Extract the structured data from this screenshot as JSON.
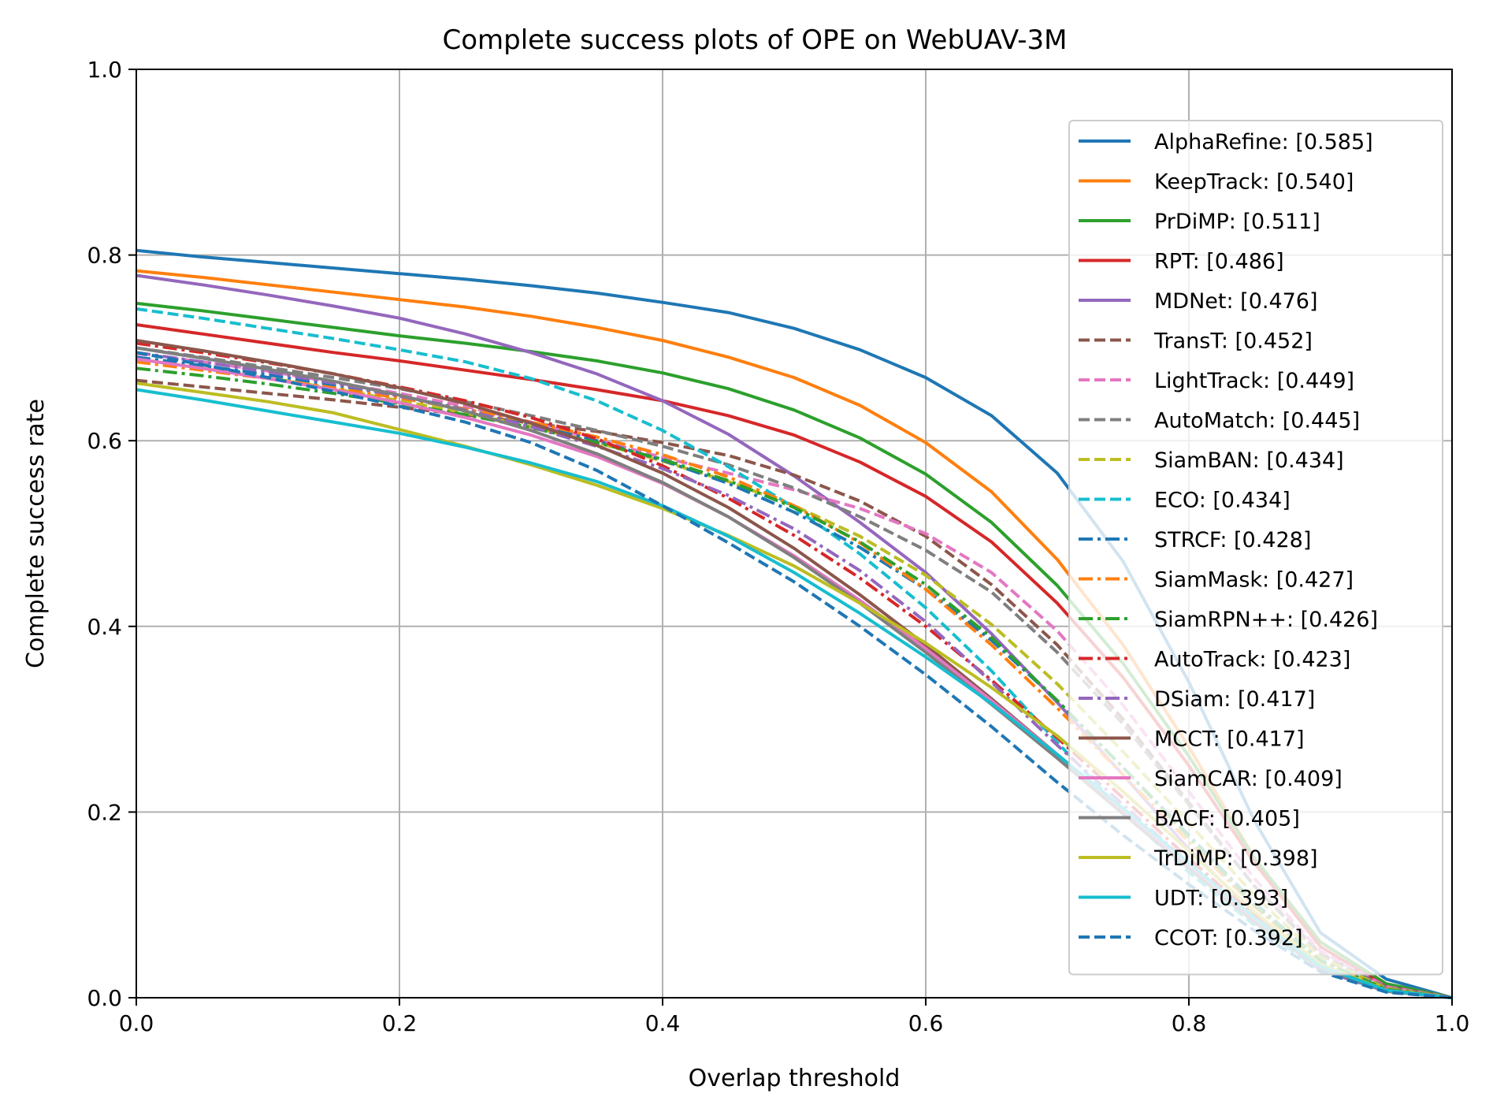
{
  "chart_data": {
    "type": "line",
    "title": "Complete success plots of OPE on WebUAV-3M",
    "xlabel": "Overlap threshold",
    "ylabel": "Complete success rate",
    "xlim": [
      0,
      1
    ],
    "ylim": [
      0,
      1
    ],
    "xticks": [
      "0.0",
      "0.2",
      "0.4",
      "0.6",
      "0.8",
      "1.0"
    ],
    "yticks": [
      "0.0",
      "0.2",
      "0.4",
      "0.6",
      "0.8",
      "1.0"
    ],
    "grid": true,
    "legend_position": "upper-right",
    "x": [
      0.0,
      0.05,
      0.1,
      0.15,
      0.2,
      0.25,
      0.3,
      0.35,
      0.4,
      0.45,
      0.5,
      0.55,
      0.6,
      0.65,
      0.7,
      0.75,
      0.8,
      0.85,
      0.9,
      0.95,
      1.0
    ],
    "series": [
      {
        "name": "AlphaRefine",
        "label": "AlphaRefine: [0.585]",
        "color": "#1f77b4",
        "style": "solid",
        "values": [
          0.805,
          0.798,
          0.792,
          0.786,
          0.78,
          0.774,
          0.767,
          0.759,
          0.749,
          0.738,
          0.721,
          0.698,
          0.668,
          0.627,
          0.565,
          0.47,
          0.34,
          0.19,
          0.07,
          0.02,
          0.0
        ]
      },
      {
        "name": "KeepTrack",
        "label": "KeepTrack: [0.540]",
        "color": "#ff7f0e",
        "style": "solid",
        "values": [
          0.783,
          0.776,
          0.768,
          0.76,
          0.752,
          0.744,
          0.734,
          0.722,
          0.708,
          0.69,
          0.668,
          0.638,
          0.598,
          0.545,
          0.472,
          0.38,
          0.27,
          0.15,
          0.06,
          0.015,
          0.0
        ]
      },
      {
        "name": "PrDiMP",
        "label": "PrDiMP: [0.511]",
        "color": "#2ca02c",
        "style": "solid",
        "values": [
          0.748,
          0.74,
          0.731,
          0.722,
          0.713,
          0.705,
          0.696,
          0.686,
          0.673,
          0.656,
          0.633,
          0.603,
          0.564,
          0.512,
          0.444,
          0.36,
          0.26,
          0.15,
          0.06,
          0.015,
          0.0
        ]
      },
      {
        "name": "RPT",
        "label": "RPT: [0.486]",
        "color": "#d62728",
        "style": "solid",
        "values": [
          0.725,
          0.715,
          0.705,
          0.695,
          0.686,
          0.676,
          0.666,
          0.655,
          0.643,
          0.627,
          0.606,
          0.577,
          0.54,
          0.491,
          0.425,
          0.345,
          0.25,
          0.145,
          0.055,
          0.012,
          0.0
        ]
      },
      {
        "name": "MDNet",
        "label": "MDNet: [0.476]",
        "color": "#9467bd",
        "style": "solid",
        "values": [
          0.778,
          0.768,
          0.757,
          0.745,
          0.732,
          0.715,
          0.695,
          0.672,
          0.643,
          0.607,
          0.562,
          0.512,
          0.458,
          0.392,
          0.318,
          0.24,
          0.16,
          0.09,
          0.035,
          0.008,
          0.0
        ]
      },
      {
        "name": "TransT",
        "label": "TransT: [0.452]",
        "color": "#8c564b",
        "style": "dashed",
        "values": [
          0.665,
          0.658,
          0.651,
          0.644,
          0.636,
          0.628,
          0.619,
          0.61,
          0.598,
          0.584,
          0.563,
          0.535,
          0.497,
          0.445,
          0.38,
          0.3,
          0.21,
          0.12,
          0.048,
          0.012,
          0.0
        ]
      },
      {
        "name": "LightTrack",
        "label": "LightTrack: [0.449]",
        "color": "#e377c2",
        "style": "dashed",
        "values": [
          0.694,
          0.685,
          0.675,
          0.663,
          0.651,
          0.637,
          0.62,
          0.601,
          0.582,
          0.565,
          0.547,
          0.527,
          0.5,
          0.458,
          0.395,
          0.315,
          0.222,
          0.128,
          0.05,
          0.012,
          0.0
        ]
      },
      {
        "name": "AutoMatch",
        "label": "AutoMatch: [0.445]",
        "color": "#7f7f7f",
        "style": "dashed",
        "values": [
          0.7,
          0.69,
          0.679,
          0.668,
          0.656,
          0.642,
          0.627,
          0.611,
          0.594,
          0.574,
          0.549,
          0.518,
          0.482,
          0.437,
          0.372,
          0.295,
          0.208,
          0.12,
          0.046,
          0.011,
          0.0
        ]
      },
      {
        "name": "SiamBAN",
        "label": "SiamBAN: [0.434]",
        "color": "#bcbd22",
        "style": "dashed",
        "values": [
          0.688,
          0.678,
          0.668,
          0.656,
          0.643,
          0.63,
          0.615,
          0.598,
          0.578,
          0.556,
          0.53,
          0.497,
          0.455,
          0.402,
          0.338,
          0.265,
          0.188,
          0.11,
          0.043,
          0.01,
          0.0
        ]
      },
      {
        "name": "ECO",
        "label": "ECO: [0.434]",
        "color": "#17becf",
        "style": "dashed",
        "values": [
          0.742,
          0.732,
          0.721,
          0.71,
          0.698,
          0.685,
          0.667,
          0.643,
          0.611,
          0.572,
          0.528,
          0.478,
          0.42,
          0.352,
          0.275,
          0.2,
          0.135,
          0.078,
          0.03,
          0.007,
          0.0
        ]
      },
      {
        "name": "STRCF",
        "label": "STRCF: [0.428]",
        "color": "#1f77b4",
        "style": "dashdot",
        "values": [
          0.69,
          0.681,
          0.671,
          0.66,
          0.648,
          0.634,
          0.618,
          0.6,
          0.579,
          0.554,
          0.523,
          0.485,
          0.44,
          0.385,
          0.32,
          0.248,
          0.175,
          0.102,
          0.04,
          0.009,
          0.0
        ]
      },
      {
        "name": "SiamMask",
        "label": "SiamMask: [0.427]",
        "color": "#ff7f0e",
        "style": "dashdot",
        "values": [
          0.685,
          0.676,
          0.667,
          0.657,
          0.646,
          0.634,
          0.62,
          0.604,
          0.585,
          0.561,
          0.53,
          0.49,
          0.44,
          0.38,
          0.312,
          0.24,
          0.168,
          0.098,
          0.038,
          0.009,
          0.0
        ]
      },
      {
        "name": "SiamRPN++",
        "label": "SiamRPN++: [0.426]",
        "color": "#2ca02c",
        "style": "dashdot",
        "values": [
          0.678,
          0.67,
          0.661,
          0.651,
          0.64,
          0.628,
          0.614,
          0.598,
          0.58,
          0.557,
          0.528,
          0.491,
          0.445,
          0.388,
          0.32,
          0.248,
          0.173,
          0.1,
          0.039,
          0.009,
          0.0
        ]
      },
      {
        "name": "AutoTrack",
        "label": "AutoTrack: [0.423]",
        "color": "#d62728",
        "style": "dashdot",
        "values": [
          0.705,
          0.695,
          0.684,
          0.672,
          0.658,
          0.643,
          0.625,
          0.602,
          0.573,
          0.538,
          0.498,
          0.452,
          0.4,
          0.342,
          0.28,
          0.215,
          0.15,
          0.088,
          0.035,
          0.008,
          0.0
        ]
      },
      {
        "name": "DSiam",
        "label": "DSiam: [0.417]",
        "color": "#9467bd",
        "style": "dashdot",
        "values": [
          0.695,
          0.685,
          0.674,
          0.662,
          0.648,
          0.633,
          0.615,
          0.594,
          0.57,
          0.541,
          0.505,
          0.46,
          0.405,
          0.34,
          0.272,
          0.208,
          0.145,
          0.084,
          0.03,
          0.007,
          0.0
        ]
      },
      {
        "name": "MCCT",
        "label": "MCCT: [0.417]",
        "color": "#8c564b",
        "style": "solid",
        "values": [
          0.708,
          0.697,
          0.685,
          0.672,
          0.657,
          0.64,
          0.619,
          0.595,
          0.565,
          0.528,
          0.484,
          0.434,
          0.38,
          0.322,
          0.262,
          0.202,
          0.142,
          0.084,
          0.034,
          0.008,
          0.0
        ]
      },
      {
        "name": "SiamCAR",
        "label": "SiamCAR: [0.409]",
        "color": "#e377c2",
        "style": "solid",
        "values": [
          0.688,
          0.678,
          0.667,
          0.655,
          0.641,
          0.625,
          0.606,
          0.583,
          0.554,
          0.518,
          0.476,
          0.428,
          0.376,
          0.32,
          0.262,
          0.202,
          0.142,
          0.083,
          0.033,
          0.008,
          0.0
        ]
      },
      {
        "name": "BACF",
        "label": "BACF: [0.405]",
        "color": "#7f7f7f",
        "style": "solid",
        "values": [
          0.7,
          0.689,
          0.677,
          0.664,
          0.649,
          0.632,
          0.611,
          0.586,
          0.555,
          0.518,
          0.474,
          0.425,
          0.372,
          0.316,
          0.258,
          0.198,
          0.139,
          0.081,
          0.032,
          0.007,
          0.0
        ]
      },
      {
        "name": "TrDiMP",
        "label": "TrDiMP: [0.398]",
        "color": "#bcbd22",
        "style": "solid",
        "values": [
          0.662,
          0.652,
          0.642,
          0.63,
          0.612,
          0.594,
          0.574,
          0.552,
          0.527,
          0.498,
          0.465,
          0.425,
          0.382,
          0.334,
          0.282,
          0.222,
          0.158,
          0.092,
          0.036,
          0.008,
          0.0
        ]
      },
      {
        "name": "UDT",
        "label": "UDT: [0.393]",
        "color": "#17becf",
        "style": "solid",
        "values": [
          0.655,
          0.644,
          0.632,
          0.62,
          0.608,
          0.593,
          0.576,
          0.556,
          0.53,
          0.497,
          0.458,
          0.414,
          0.367,
          0.317,
          0.262,
          0.204,
          0.145,
          0.086,
          0.034,
          0.008,
          0.0
        ]
      },
      {
        "name": "CCOT",
        "label": "CCOT: [0.392]",
        "color": "#1f77b4",
        "style": "dashed",
        "values": [
          0.695,
          0.682,
          0.668,
          0.653,
          0.637,
          0.62,
          0.598,
          0.568,
          0.53,
          0.49,
          0.448,
          0.4,
          0.348,
          0.292,
          0.232,
          0.175,
          0.122,
          0.072,
          0.028,
          0.006,
          0.0
        ]
      }
    ]
  }
}
